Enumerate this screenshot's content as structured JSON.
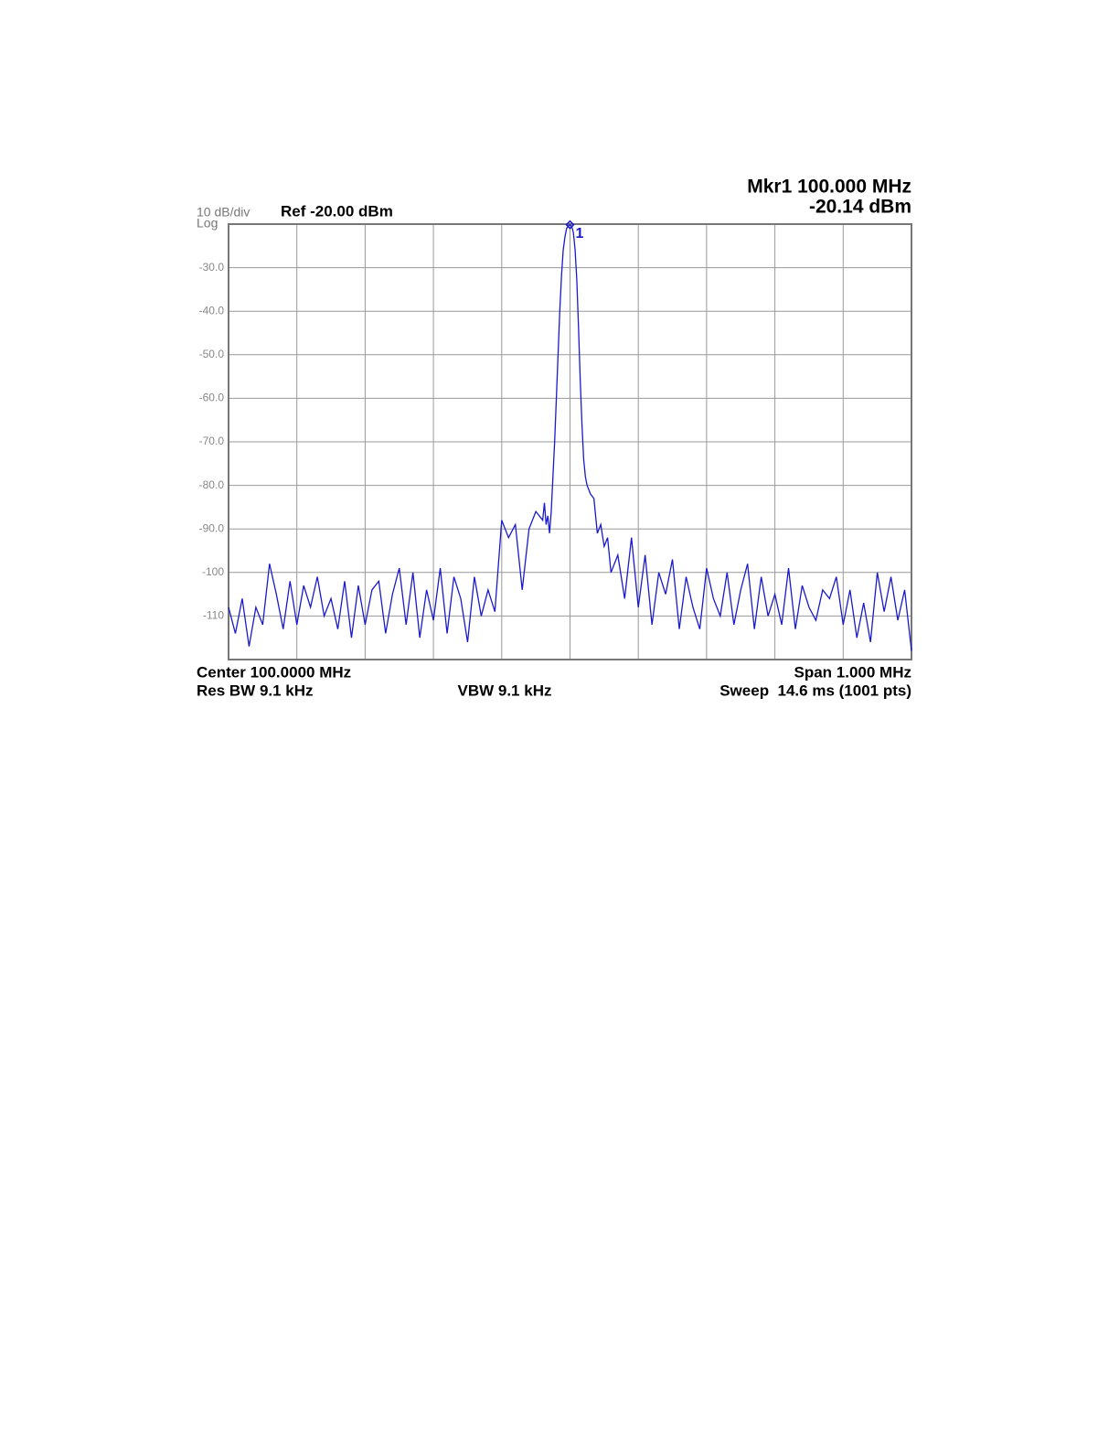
{
  "chart_data": {
    "type": "line",
    "scale_label": "10 dB/div",
    "scale_mode_label": "Log",
    "ref_label": "Ref -20.00 dBm",
    "marker_freq_label": "Mkr1 100.000 MHz",
    "marker_amp_label": "-20.14 dBm",
    "center_label": "Center 100.0000 MHz",
    "span_label": "Span 1.000 MHz",
    "rbw_label": "Res BW 9.1 kHz",
    "vbw_label": "VBW 9.1 kHz",
    "sweep_label": "Sweep  14.6 ms (1001 pts)",
    "marker": {
      "label": "1",
      "x": 100,
      "y": -20.14
    },
    "color": "#1a1acc",
    "grid": true,
    "xlim": [
      99.5,
      100.5
    ],
    "ylim": [
      -120,
      -20
    ],
    "yticks": [
      {
        "value": -30,
        "label": "-30.0"
      },
      {
        "value": -40,
        "label": "-40.0"
      },
      {
        "value": -50,
        "label": "-50.0"
      },
      {
        "value": -60,
        "label": "-60.0"
      },
      {
        "value": -70,
        "label": "-70.0"
      },
      {
        "value": -80,
        "label": "-80.0"
      },
      {
        "value": -90,
        "label": "-90.0"
      },
      -100,
      -110
    ],
    "x": [
      99.5,
      99.51,
      99.52,
      99.53,
      99.54,
      99.55,
      99.56,
      99.57,
      99.58,
      99.59,
      99.6,
      99.61,
      99.62,
      99.63,
      99.64,
      99.65,
      99.66,
      99.67,
      99.68,
      99.69,
      99.7,
      99.71,
      99.72,
      99.73,
      99.74,
      99.75,
      99.76,
      99.77,
      99.78,
      99.79,
      99.8,
      99.81,
      99.82,
      99.83,
      99.84,
      99.85,
      99.86,
      99.87,
      99.88,
      99.89,
      99.9,
      99.91,
      99.92,
      99.93,
      99.94,
      99.95,
      99.96,
      99.9625,
      99.965,
      99.9675,
      99.97,
      99.9725,
      99.975,
      99.9775,
      99.98,
      99.9825,
      99.985,
      99.9875,
      99.99,
      99.9925,
      99.995,
      99.9975,
      100.0,
      100.0025,
      100.005,
      100.0075,
      100.01,
      100.0125,
      100.015,
      100.0175,
      100.02,
      100.0225,
      100.025,
      100.03,
      100.035,
      100.04,
      100.045,
      100.05,
      100.055,
      100.06,
      100.07,
      100.08,
      100.09,
      100.1,
      100.11,
      100.12,
      100.13,
      100.14,
      100.15,
      100.16,
      100.17,
      100.18,
      100.19,
      100.2,
      100.21,
      100.22,
      100.23,
      100.24,
      100.25,
      100.26,
      100.27,
      100.28,
      100.29,
      100.3,
      100.31,
      100.32,
      100.33,
      100.34,
      100.35,
      100.36,
      100.37,
      100.38,
      100.39,
      100.4,
      100.41,
      100.42,
      100.43,
      100.44,
      100.45,
      100.46,
      100.47,
      100.48,
      100.49,
      100.5
    ],
    "values": [
      -108,
      -114,
      -106,
      -117,
      -108,
      -112,
      -98,
      -105,
      -113,
      -102,
      -112,
      -103,
      -108,
      -101,
      -110,
      -106,
      -113,
      -102,
      -115,
      -103,
      -112,
      -104,
      -102,
      -114,
      -105,
      -99,
      -112,
      -100,
      -115,
      -104,
      -111,
      -99,
      -114,
      -101,
      -106,
      -116,
      -101,
      -110,
      -104,
      -109,
      -88,
      -92,
      -89,
      -104,
      -90,
      -86,
      -88,
      -84,
      -89,
      -87,
      -91,
      -86,
      -78,
      -70,
      -60,
      -50,
      -40,
      -32,
      -26,
      -23,
      -21,
      -20.4,
      -20.14,
      -20.5,
      -22,
      -26,
      -33,
      -44,
      -56,
      -66,
      -74,
      -78,
      -80,
      -82,
      -83,
      -91,
      -89,
      -94,
      -92,
      -100,
      -96,
      -106,
      -92,
      -108,
      -96,
      -112,
      -100,
      -105,
      -97,
      -113,
      -101,
      -108,
      -113,
      -99,
      -106,
      -110,
      -100,
      -112,
      -104,
      -98,
      -113,
      -101,
      -110,
      -105,
      -112,
      -99,
      -113,
      -103,
      -108,
      -111,
      -104,
      -106,
      -101,
      -112,
      -104,
      -115,
      -107,
      -116,
      -100,
      -109,
      -101,
      -111,
      -104,
      -118
    ]
  }
}
